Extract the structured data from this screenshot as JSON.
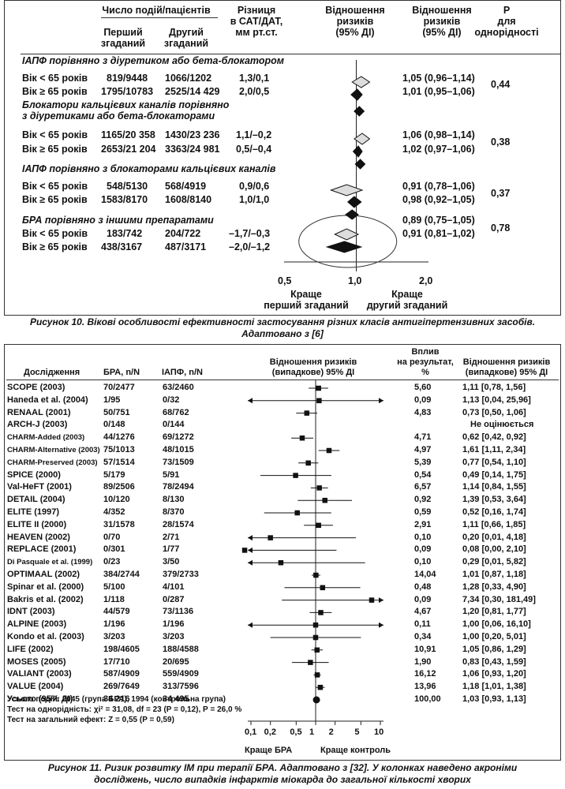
{
  "figure10": {
    "headers": {
      "events": "Число подій/пацієнтів",
      "first": "Перший\nзгаданий",
      "second": "Другий\nзгаданий",
      "diff": "Різниця\nв САТ/ДАТ,\nмм рт.ст.",
      "or": "Відношення\nризиків\n(95% ДІ)",
      "or2": "Відношення\nризиків\n(95% ДІ)",
      "p": "Р\nдля\nоднорідності"
    },
    "sections": [
      {
        "title": "ІАПФ порівняно з діуретиком або бета-блокатором",
        "rows": [
          {
            "label": "Вік < 65 років",
            "first": "819/9448",
            "second": "1066/1202",
            "diff": "1,3/0,1",
            "or": "1,05 (0,96–1,14)"
          },
          {
            "label": "Вік ≥ 65 років",
            "first": "1795/10783",
            "second": "2525/14 429",
            "diff": "2,0/0,5",
            "or": "1,01 (0,95–1,06)"
          }
        ],
        "p": "0,44"
      },
      {
        "title": "Блокатори кальцієвих каналів порівняно\nз діуретиками або бета-блокаторами",
        "rows": [
          {
            "label": "Вік < 65 років",
            "first": "1165/20 358",
            "second": "1430/23 236",
            "diff": "1,1/–0,2",
            "or": "1,06 (0,98–1,14)"
          },
          {
            "label": "Вік ≥ 65 років",
            "first": "2653/21 204",
            "second": "3363/24 981",
            "diff": "0,5/–0,4",
            "or": "1,02 (0,97–1,06)"
          }
        ],
        "p": "0,38"
      },
      {
        "title": "ІАПФ порівняно з блокаторами кальцієвих каналів",
        "rows": [
          {
            "label": "Вік < 65 років",
            "first": "548/5130",
            "second": "568/4919",
            "diff": "0,9/0,6",
            "or": "0,91 (0,78–1,06)"
          },
          {
            "label": "Вік ≥ 65 років",
            "first": "1583/8170",
            "second": "1608/8140",
            "diff": "1,0/1,0",
            "or": "0,98 (0,92–1,05)"
          }
        ],
        "p": "0,37"
      },
      {
        "title": "БРА порівняно з іншими препаратами",
        "rows": [
          {
            "label": "Вік < 65 років",
            "first": "183/742",
            "second": "204/722",
            "diff": "–1,7/–0,3",
            "or": "0,91 (0,81–1,02)"
          },
          {
            "label": "Вік ≥ 65 років",
            "first": "438/3167",
            "second": "487/3171",
            "diff": "–2,0/–1,2",
            "or": ""
          }
        ],
        "or_extra": "0,89 (0,75–1,05)",
        "p": "0,78"
      }
    ],
    "axis_ticks": [
      "0,5",
      "1,0",
      "2,0"
    ],
    "favors_left": "Краще\nперший згаданий",
    "favors_right": "Краще\nдругий згаданий",
    "caption": "Рисунок 10. Вікові особливості ефективності застосування різних класів антигіпертензивних засобів.\nАдаптовано з [6]"
  },
  "figure11": {
    "headers": {
      "study": "Дослідження",
      "arb": "БРА, n/N",
      "ace": "ІАПФ, n/N",
      "or_random": "Відношення ризиків\n(випадкове) 95% ДІ",
      "weight": "Вплив\nна результат,\n%",
      "or_random2": "Відношення ризиків\n(випадкове) 95% ДІ"
    },
    "studies": [
      {
        "name": "SCOPE (2003)",
        "arb": "70/2477",
        "ace": "63/2460",
        "weight": "5,60",
        "or": "1,11 [0,78, 1,56]",
        "small": false
      },
      {
        "name": "Haneda et al. (2004)",
        "arb": "1/95",
        "ace": "0/32",
        "weight": "0,09",
        "or": "1,13 [0,04, 25,96]",
        "small": false
      },
      {
        "name": "RENAAL (2001)",
        "arb": "50/751",
        "ace": "68/762",
        "weight": "4,83",
        "or": "0,73 [0,50, 1,06]",
        "small": false
      },
      {
        "name": "ARCH-J (2003)",
        "arb": "0/148",
        "ace": "0/144",
        "weight": "",
        "or": "Не оцінюється",
        "small": false
      },
      {
        "name": "CHARM-Added (2003)",
        "arb": "44/1276",
        "ace": "69/1272",
        "weight": "4,71",
        "or": "0,62 [0,42, 0,92]",
        "small": true
      },
      {
        "name": "CHARM-Alternative (2003)",
        "arb": "75/1013",
        "ace": "48/1015",
        "weight": "4,97",
        "or": "1,61 [1,11, 2,34]",
        "small": true
      },
      {
        "name": "CHARM-Preserved (2003)",
        "arb": "57/1514",
        "ace": "73/1509",
        "weight": "5,39",
        "or": "0,77 [0,54, 1,10]",
        "small": true
      },
      {
        "name": "SPICE (2000)",
        "arb": "5/179",
        "ace": "5/91",
        "weight": "0,54",
        "or": "0,49 [0,14, 1,75]",
        "small": false
      },
      {
        "name": "Val-HeFT (2001)",
        "arb": "89/2506",
        "ace": "78/2494",
        "weight": "6,57",
        "or": "1,14 [0,84, 1,55]",
        "small": false
      },
      {
        "name": "DETAIL (2004)",
        "arb": "10/120",
        "ace": "8/130",
        "weight": "0,92",
        "or": "1,39 [0,53, 3,64]",
        "small": false
      },
      {
        "name": "ELITE (1997)",
        "arb": "4/352",
        "ace": "8/370",
        "weight": "0,59",
        "or": "0,52 [0,16, 1,74]",
        "small": false
      },
      {
        "name": "ELITE II (2000)",
        "arb": "31/1578",
        "ace": "28/1574",
        "weight": "2,91",
        "or": "1,11 [0,66, 1,85]",
        "small": false
      },
      {
        "name": "HEAVEN (2002)",
        "arb": "0/70",
        "ace": "2/71",
        "weight": "0,10",
        "or": "0,20 [0,01, 4,18]",
        "small": false
      },
      {
        "name": "REPLACE (2001)",
        "arb": "0/301",
        "ace": "1/77",
        "weight": "0,09",
        "or": "0,08 [0,00, 2,10]",
        "small": false
      },
      {
        "name": "Di Pasquale et al. (1999)",
        "arb": "0/23",
        "ace": "3/50",
        "weight": "0,10",
        "or": "0,29 [0,01, 5,82]",
        "small": true
      },
      {
        "name": "OPTIMAAL (2002)",
        "arb": "384/2744",
        "ace": "379/2733",
        "weight": "14,04",
        "or": "1,01 [0,87, 1,18]",
        "small": false
      },
      {
        "name": "Spinar et al. (2000)",
        "arb": "5/100",
        "ace": "4/101",
        "weight": "0,48",
        "or": "1,28 [0,33, 4,90]",
        "small": false
      },
      {
        "name": "Bakris et al. (2002)",
        "arb": "1/118",
        "ace": "0/287",
        "weight": "0,09",
        "or": "7,34 [0,30, 181,49]",
        "small": false
      },
      {
        "name": "IDNT (2003)",
        "arb": "44/579",
        "ace": "73/1136",
        "weight": "4,67",
        "or": "1,20 [0,81, 1,77]",
        "small": false
      },
      {
        "name": "ALPINE (2003)",
        "arb": "1/196",
        "ace": "1/196",
        "weight": "0,11",
        "or": "1,00 [0,06, 16,10]",
        "small": false
      },
      {
        "name": "Kondo et al. (2003)",
        "arb": "3/203",
        "ace": "3/203",
        "weight": "0,34",
        "or": "1,00 [0,20, 5,01]",
        "small": false
      },
      {
        "name": "LIFE (2002)",
        "arb": "198/4605",
        "ace": "188/4588",
        "weight": "10,91",
        "or": "1,05 [0,86, 1,29]",
        "small": false
      },
      {
        "name": "MOSES (2005)",
        "arb": "17/710",
        "ace": "20/695",
        "weight": "1,90",
        "or": "0,83 [0,43, 1,59]",
        "small": false
      },
      {
        "name": "VALIANT (2003)",
        "arb": "587/4909",
        "ace": "559/4909",
        "weight": "16,12",
        "or": "1,06 [0,93, 1,20]",
        "small": false
      },
      {
        "name": "VALUE (2004)",
        "arb": "269/7649",
        "ace": "313/7596",
        "weight": "13,96",
        "or": "1,18 [1,01, 1,38]",
        "small": false
      }
    ],
    "total": {
      "name": "Усього (95% ДІ)",
      "arb": "34 216",
      "ace": "34 495",
      "weight": "100,00",
      "or": "1,03 [0,93, 1,13]"
    },
    "footnotes": [
      "Усього подій: 2045 (група БРА), 1994 (контрольна група)",
      "Тест на однорідність: χі² = 31,08, df = 23 (P = 0,12), Р = 26,0 %",
      "Тест на загальний ефект: Z = 0,55 (P = 0,59)"
    ],
    "axis_ticks": [
      "0,1",
      "0,2",
      "0,5",
      "1",
      "2",
      "5",
      "10"
    ],
    "favors_left": "Краще БРА",
    "favors_right": "Краще контроль",
    "caption": "Рисунок 11. Ризик розвитку ІМ при терапії БРА. Адаптовано з [32]. У колонках наведено акроніми\nдосліджень, число випадків інфарктів міокарда до загальної кількості хворих"
  },
  "chart_data": [
    {
      "type": "forest",
      "x_scale": "log",
      "xlim": [
        0.5,
        2.0
      ],
      "points": [
        {
          "ci_low": 0.96,
          "ci_high": 1.14,
          "or": 1.05
        },
        {
          "ci_low": 0.95,
          "ci_high": 1.06,
          "or": 1.01
        },
        {
          "ci_low": 0.98,
          "ci_high": 1.14,
          "or": 1.06
        },
        {
          "ci_low": 0.97,
          "ci_high": 1.06,
          "or": 1.02
        },
        {
          "ci_low": 0.78,
          "ci_high": 1.06,
          "or": 0.91
        },
        {
          "ci_low": 0.92,
          "ci_high": 1.05,
          "or": 0.98
        },
        {
          "ci_low": 0.81,
          "ci_high": 1.02,
          "or": 0.91
        },
        {
          "ci_low": 0.75,
          "ci_high": 1.05,
          "or": 0.89
        }
      ],
      "overall": [
        {
          "or": 1.03,
          "ci_low": 0.98,
          "ci_high": 1.08
        },
        {
          "or": 1.04,
          "ci_low": 0.99,
          "ci_high": 1.09
        },
        {
          "or": 0.96,
          "ci_low": 0.9,
          "ci_high": 1.02
        }
      ]
    },
    {
      "type": "forest",
      "x_scale": "log",
      "xlim": [
        0.1,
        10
      ],
      "points": [
        {
          "or": 1.11,
          "lo": 0.78,
          "hi": 1.56
        },
        {
          "or": 1.13,
          "lo": 0.04,
          "hi": 25.96
        },
        {
          "or": 0.73,
          "lo": 0.5,
          "hi": 1.06
        },
        null,
        {
          "or": 0.62,
          "lo": 0.42,
          "hi": 0.92
        },
        {
          "or": 1.61,
          "lo": 1.11,
          "hi": 2.34
        },
        {
          "or": 0.77,
          "lo": 0.54,
          "hi": 1.1
        },
        {
          "or": 0.49,
          "lo": 0.14,
          "hi": 1.75
        },
        {
          "or": 1.14,
          "lo": 0.84,
          "hi": 1.55
        },
        {
          "or": 1.39,
          "lo": 0.53,
          "hi": 3.64
        },
        {
          "or": 0.52,
          "lo": 0.16,
          "hi": 1.74
        },
        {
          "or": 1.11,
          "lo": 0.66,
          "hi": 1.85
        },
        {
          "or": 0.2,
          "lo": 0.01,
          "hi": 4.18
        },
        {
          "or": 0.08,
          "lo": 0.0,
          "hi": 2.1
        },
        {
          "or": 0.29,
          "lo": 0.01,
          "hi": 5.82
        },
        {
          "or": 1.01,
          "lo": 0.87,
          "hi": 1.18
        },
        {
          "or": 1.28,
          "lo": 0.33,
          "hi": 4.9
        },
        {
          "or": 7.34,
          "lo": 0.3,
          "hi": 181.49
        },
        {
          "or": 1.2,
          "lo": 0.81,
          "hi": 1.77
        },
        {
          "or": 1.0,
          "lo": 0.06,
          "hi": 16.1
        },
        {
          "or": 1.0,
          "lo": 0.2,
          "hi": 5.01
        },
        {
          "or": 1.05,
          "lo": 0.86,
          "hi": 1.29
        },
        {
          "or": 0.83,
          "lo": 0.43,
          "hi": 1.59
        },
        {
          "or": 1.06,
          "lo": 0.93,
          "hi": 1.2
        },
        {
          "or": 1.18,
          "lo": 1.01,
          "hi": 1.38
        }
      ],
      "total": {
        "or": 1.03,
        "lo": 0.93,
        "hi": 1.13
      }
    }
  ]
}
